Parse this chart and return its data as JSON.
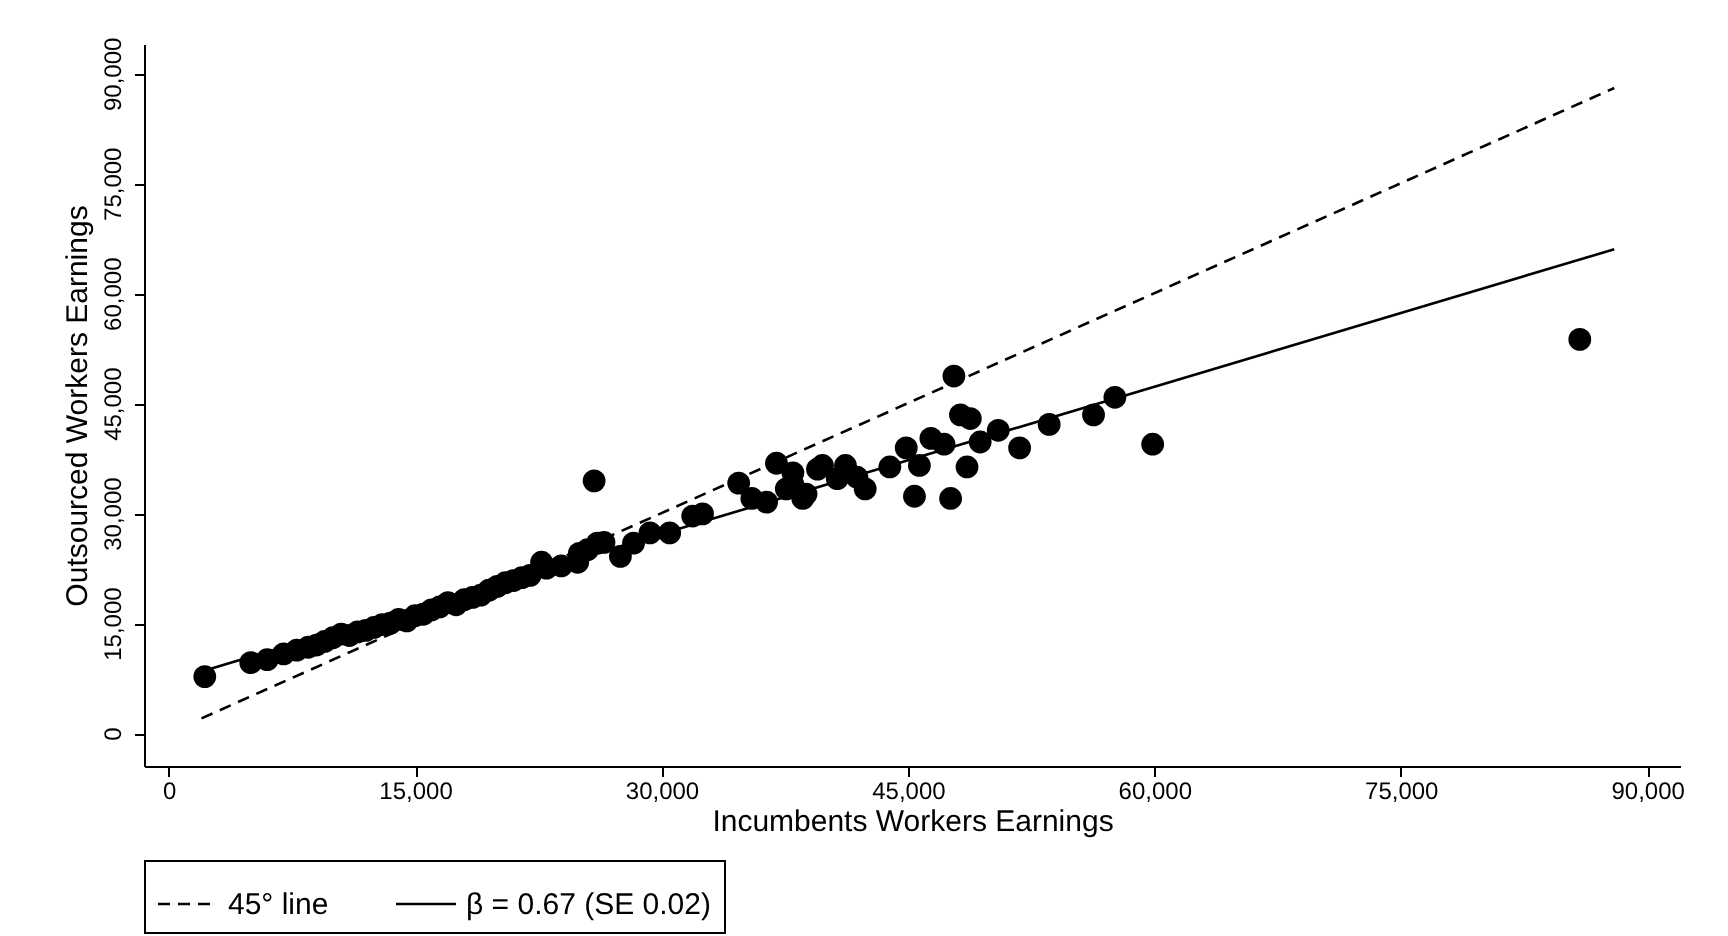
{
  "chart_data": {
    "type": "scatter",
    "xlabel": "Incumbents Workers Earnings",
    "ylabel": "Outsourced Workers Earnings",
    "xlim": [
      -1500,
      92000
    ],
    "ylim": [
      -4500,
      94000
    ],
    "xticks": [
      0,
      {
        "value": 15000,
        "label": "15,000"
      },
      {
        "value": 30000,
        "label": "30,000"
      },
      {
        "value": 45000,
        "label": "45,000"
      },
      {
        "value": 60000,
        "label": "60,000"
      },
      {
        "value": 75000,
        "label": "75,000"
      },
      {
        "value": 90000,
        "label": "90,000"
      }
    ],
    "yticks": [
      0,
      {
        "value": 15000,
        "label": "15,000"
      },
      {
        "value": 30000,
        "label": "30,000"
      },
      {
        "value": 45000,
        "label": "45,000"
      },
      {
        "value": 60000,
        "label": "60,000"
      },
      {
        "value": 75000,
        "label": "75,000"
      },
      {
        "value": 90000,
        "label": "90,000"
      }
    ],
    "grid": false,
    "legend": "bottom",
    "marker": "circle",
    "series": [
      {
        "color": "#000000",
        "x": [
          2200,
          5000,
          6000,
          7000,
          7800,
          8500,
          9000,
          9500,
          10000,
          10500,
          11000,
          11500,
          12000,
          12500,
          13000,
          13500,
          14000,
          14500,
          15000,
          15500,
          16000,
          16500,
          17000,
          17500,
          18000,
          18500,
          19000,
          19500,
          20000,
          20500,
          21000,
          21500,
          22000,
          22700,
          23000,
          23900,
          24900,
          25000,
          25500,
          26100,
          26500,
          25900,
          27500,
          28300,
          29300,
          30500,
          31900,
          32500,
          34700,
          35500,
          36400,
          37000,
          37600,
          38000,
          38000,
          38600,
          38800,
          39500,
          39800,
          40700,
          41200,
          41900,
          42400,
          43900,
          44900,
          45400,
          45700,
          46400,
          47200,
          47600,
          47800,
          48200,
          48600,
          48800,
          49400,
          50500,
          51800,
          53600,
          56300,
          57600,
          59900,
          85900
        ],
        "values": [
          7700,
          9600,
          10000,
          10800,
          11300,
          11700,
          12000,
          12500,
          13000,
          13500,
          13300,
          13800,
          14000,
          14400,
          14800,
          15000,
          15500,
          15300,
          16000,
          16200,
          16800,
          17200,
          17800,
          17500,
          18200,
          18500,
          18800,
          19500,
          20000,
          20500,
          20800,
          21200,
          21500,
          23300,
          22500,
          22800,
          23300,
          24500,
          25000,
          25900,
          26000,
          34400,
          24100,
          25900,
          27300,
          27300,
          29600,
          29900,
          34100,
          32000,
          31500,
          36800,
          33300,
          33900,
          35500,
          32000,
          32600,
          36000,
          36500,
          34700,
          36500,
          34900,
          33300,
          36300,
          38900,
          32300,
          36500,
          40200,
          39400,
          32000,
          48700,
          43400,
          36300,
          42900,
          39700,
          41300,
          38900,
          42100,
          43400,
          45800,
          39400,
          53700
        ]
      },
      {
        "type": "line",
        "name": "45° line",
        "color": "#000000",
        "line_style": "dashed",
        "marker": "none",
        "x": [
          2000,
          88000
        ],
        "values": [
          2000,
          88000
        ]
      },
      {
        "type": "line",
        "name": "β = 0.67 (SE 0.02)",
        "color": "#000000",
        "line_style": "solid",
        "marker": "none",
        "x": [
          2000,
          88000
        ],
        "values": [
          8400,
          66000
        ]
      }
    ]
  }
}
